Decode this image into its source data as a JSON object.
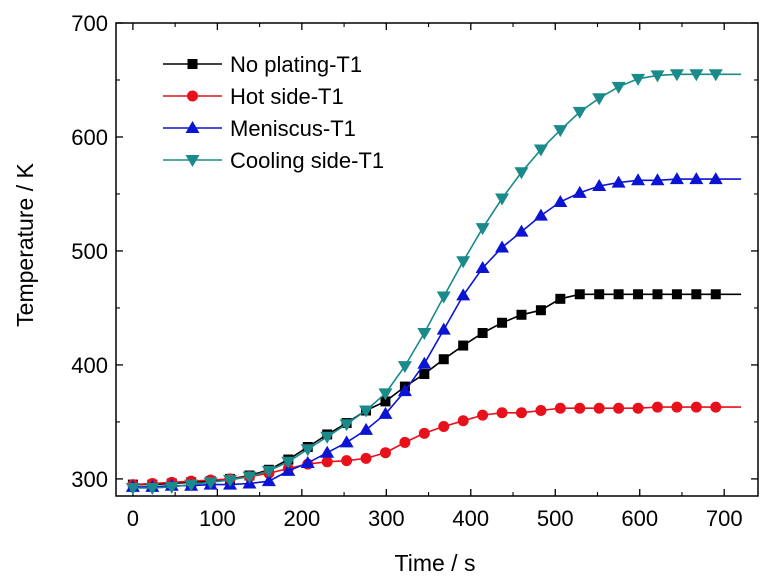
{
  "chart_data": {
    "type": "line",
    "title": "",
    "xlabel": "Time / s",
    "ylabel": "Temperature / K",
    "xlim": [
      -20,
      740
    ],
    "ylim": [
      285,
      700
    ],
    "xticks": [
      0,
      100,
      200,
      300,
      400,
      500,
      600,
      700
    ],
    "yticks": [
      300,
      400,
      500,
      600,
      700
    ],
    "grid": false,
    "legend_position": "top-left",
    "series": [
      {
        "name": "No plating-T1",
        "color": "#000000",
        "marker": "square",
        "x": [
          0,
          23,
          46,
          69,
          92,
          115,
          138,
          161,
          184,
          207,
          230,
          253,
          276,
          299,
          322,
          345,
          368,
          391,
          414,
          437,
          460,
          483,
          506,
          529,
          552,
          575,
          598,
          621,
          644,
          667,
          690,
          720
        ],
        "y": [
          295,
          295,
          296,
          297,
          298,
          300,
          303,
          308,
          317,
          328,
          339,
          349,
          360,
          368,
          381,
          392,
          405,
          417,
          428,
          437,
          444,
          448,
          458,
          462,
          462,
          462,
          462,
          462,
          462,
          462,
          462,
          462
        ]
      },
      {
        "name": "Hot side-T1",
        "color": "#e8101a",
        "marker": "circle",
        "x": [
          0,
          23,
          46,
          69,
          92,
          115,
          138,
          161,
          184,
          207,
          230,
          253,
          276,
          299,
          322,
          345,
          368,
          391,
          414,
          437,
          460,
          483,
          506,
          529,
          552,
          575,
          598,
          621,
          644,
          667,
          690,
          720
        ],
        "y": [
          295,
          296,
          297,
          298,
          299,
          300,
          302,
          305,
          309,
          313,
          315,
          316,
          318,
          323,
          332,
          340,
          346,
          351,
          356,
          358,
          358,
          360,
          362,
          362,
          362,
          362,
          362,
          363,
          363,
          363,
          363,
          363
        ]
      },
      {
        "name": "Meniscus-T1",
        "color": "#0a14d2",
        "marker": "triangle-up",
        "x": [
          0,
          23,
          46,
          69,
          92,
          115,
          138,
          161,
          184,
          207,
          230,
          253,
          276,
          299,
          322,
          345,
          368,
          391,
          414,
          437,
          460,
          483,
          506,
          529,
          552,
          575,
          598,
          621,
          644,
          667,
          690,
          720
        ],
        "y": [
          293,
          293,
          294,
          294,
          295,
          295,
          296,
          298,
          307,
          314,
          323,
          332,
          343,
          357,
          377,
          401,
          431,
          461,
          485,
          503,
          517,
          531,
          543,
          551,
          557,
          560,
          562,
          562,
          563,
          563,
          563,
          563
        ]
      },
      {
        "name": "Cooling side-T1",
        "color": "#1a8a8a",
        "marker": "triangle-down",
        "x": [
          0,
          23,
          46,
          69,
          92,
          115,
          138,
          161,
          184,
          207,
          230,
          253,
          276,
          299,
          322,
          345,
          368,
          391,
          414,
          437,
          460,
          483,
          506,
          529,
          552,
          575,
          598,
          621,
          644,
          667,
          690,
          720
        ],
        "y": [
          292,
          292,
          293,
          295,
          297,
          299,
          302,
          307,
          315,
          326,
          337,
          348,
          360,
          375,
          399,
          428,
          460,
          491,
          520,
          546,
          569,
          589,
          606,
          622,
          634,
          644,
          651,
          654,
          655,
          655,
          655,
          655
        ]
      }
    ]
  }
}
